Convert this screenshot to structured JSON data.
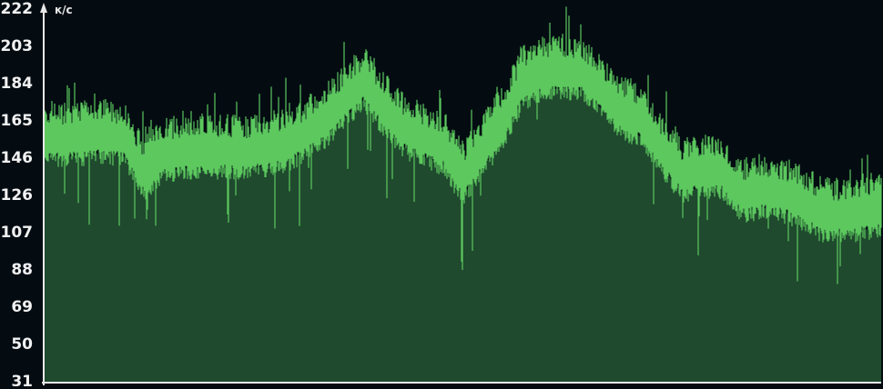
{
  "chart_data": {
    "type": "area",
    "ylabel": "к/с",
    "ylim": [
      31,
      222
    ],
    "y_ticks": [
      "222",
      "203",
      "184",
      "165",
      "146",
      "126",
      "107",
      "88",
      "69",
      "50",
      "31"
    ],
    "grid": false,
    "values": [
      157,
      156,
      157,
      158,
      156,
      138,
      148,
      150,
      149,
      150,
      149,
      151,
      153,
      158,
      165,
      175,
      185,
      172,
      161,
      156,
      152,
      136,
      150,
      165,
      185,
      190,
      191,
      190,
      180,
      170,
      166,
      150,
      138,
      140,
      140,
      127,
      130,
      128,
      124,
      118,
      117,
      118,
      120
    ],
    "colors": {
      "line": "#5cc85e",
      "fill": "#1f4a2e",
      "background": "#040c12",
      "axis": "#e8e8e8"
    }
  }
}
